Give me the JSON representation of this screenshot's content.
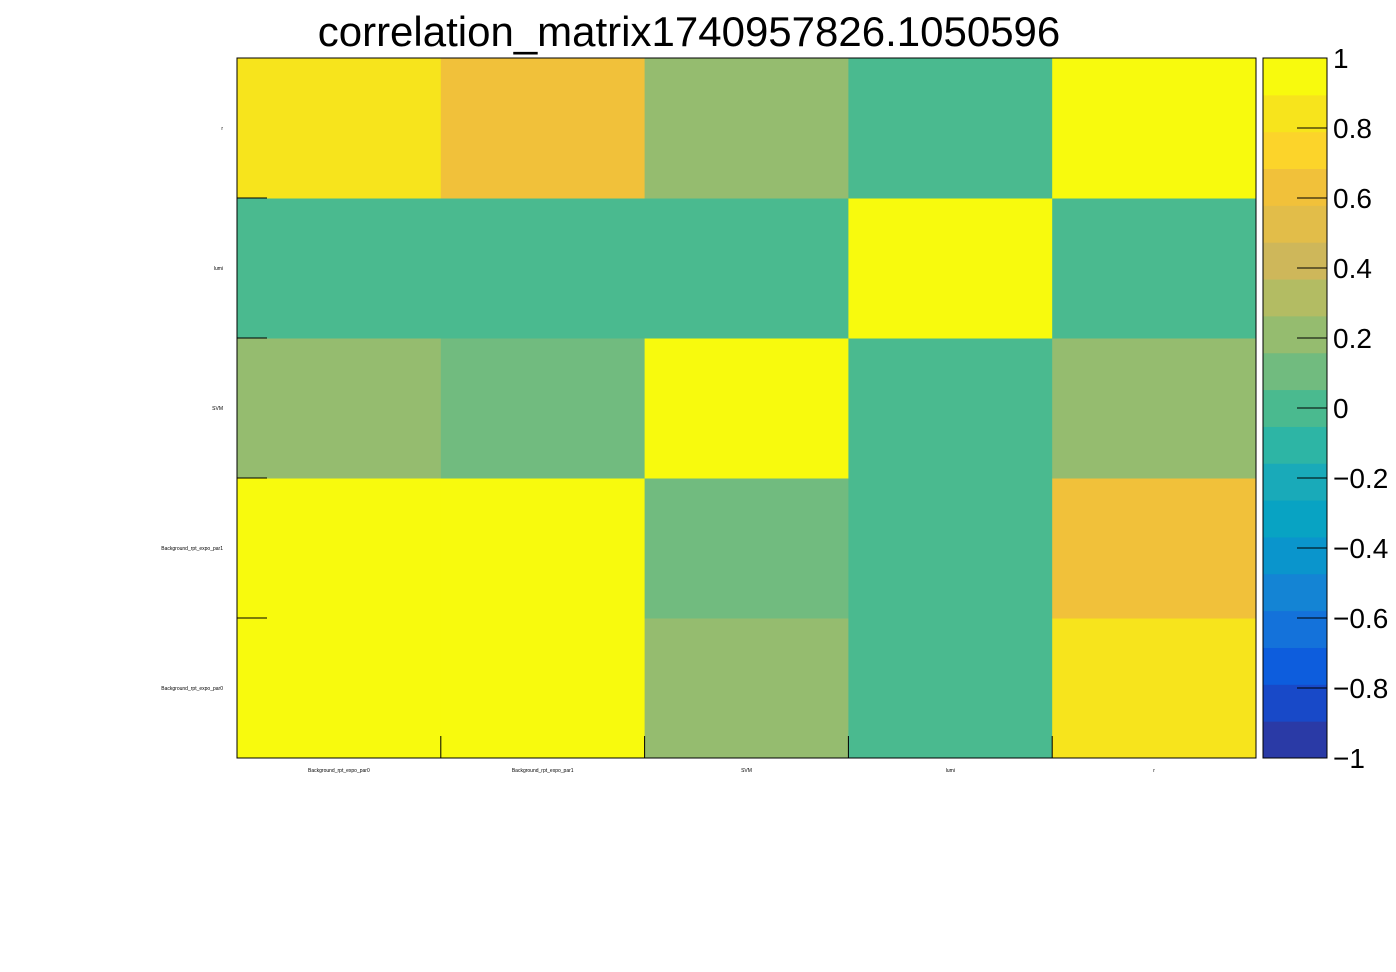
{
  "chart_data": {
    "type": "heatmap",
    "title": "correlation_matrix1740957826.1050596",
    "x_categories": [
      "Background_rpt_expo_par0",
      "Background_rpt_expo_par1",
      "SVM",
      "lumi",
      "r"
    ],
    "y_categories": [
      "Background_rpt_expo_par0",
      "Background_rpt_expo_par1",
      "SVM",
      "lumi",
      "r"
    ],
    "values": [
      [
        1.0,
        0.9,
        0.2,
        0.0,
        0.8
      ],
      [
        0.9,
        1.0,
        0.1,
        0.0,
        0.6
      ],
      [
        0.2,
        0.1,
        1.0,
        0.0,
        0.2
      ],
      [
        0.0,
        0.0,
        0.0,
        1.0,
        0.0
      ],
      [
        0.8,
        0.6,
        0.2,
        0.0,
        1.0
      ]
    ],
    "zlim": [
      -1,
      1
    ],
    "colorbar_ticks": [
      {
        "value": -1,
        "label": "−1"
      },
      {
        "value": -0.8,
        "label": "−0.8"
      },
      {
        "value": -0.6,
        "label": "−0.6"
      },
      {
        "value": -0.4,
        "label": "−0.4"
      },
      {
        "value": -0.2,
        "label": "−0.2"
      },
      {
        "value": 0,
        "label": "0"
      },
      {
        "value": 0.2,
        "label": "0.2"
      },
      {
        "value": 0.4,
        "label": "0.4"
      },
      {
        "value": 0.6,
        "label": "0.6"
      },
      {
        "value": 0.8,
        "label": "0.8"
      },
      {
        "value": 1,
        "label": "1"
      }
    ],
    "palette": [
      "#2a3aa6",
      "#1849c8",
      "#0d5ddd",
      "#1472da",
      "#1484d4",
      "#0a95cc",
      "#08a3c3",
      "#19aab9",
      "#2db5a5",
      "#4aba8f",
      "#71bb7f",
      "#95bc6f",
      "#b3bc63",
      "#ceb75a",
      "#e2bd49",
      "#f1c13a",
      "#fcd42a",
      "#f7e41c",
      "#f8fa0d"
    ],
    "grid": false
  }
}
